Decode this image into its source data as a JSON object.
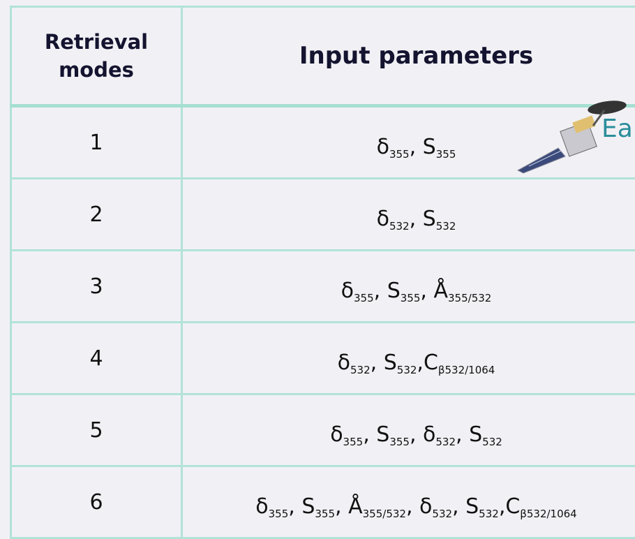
{
  "header": {
    "mode": "Retrieval modes",
    "parameters": "Input parameters"
  },
  "table": {
    "rows": [
      {
        "mode": "1",
        "parameters": [
          {
            "base": "δ",
            "sub": "355"
          },
          {
            "base": ", S",
            "sub": "355"
          }
        ]
      },
      {
        "mode": "2",
        "parameters": [
          {
            "base": "δ",
            "sub": "532"
          },
          {
            "base": ", S",
            "sub": "532"
          }
        ]
      },
      {
        "mode": "3",
        "parameters": [
          {
            "base": "δ",
            "sub": "355"
          },
          {
            "base": ", S",
            "sub": "355"
          },
          {
            "base": ", Å",
            "sub": "355/532"
          }
        ]
      },
      {
        "mode": "4",
        "parameters": [
          {
            "base": "δ",
            "sub": "532"
          },
          {
            "base": ", S",
            "sub": "532"
          },
          {
            "base": ",C",
            "sub": "β532/1064"
          }
        ]
      },
      {
        "mode": "5",
        "parameters": [
          {
            "base": "δ",
            "sub": "355"
          },
          {
            "base": ", S",
            "sub": "355"
          },
          {
            "base": ", δ",
            "sub": "532"
          },
          {
            "base": ", S",
            "sub": "532"
          }
        ]
      },
      {
        "mode": "6",
        "parameters": [
          {
            "base": "δ",
            "sub": "355"
          },
          {
            "base": ", S",
            "sub": "355"
          },
          {
            "base": ", Å",
            "sub": "355/532"
          },
          {
            "base": ", δ",
            "sub": "532"
          },
          {
            "base": ", S",
            "sub": "532"
          },
          {
            "base": ",C",
            "sub": "β532/1064"
          }
        ]
      }
    ]
  },
  "logo": {
    "text": "Ea"
  }
}
